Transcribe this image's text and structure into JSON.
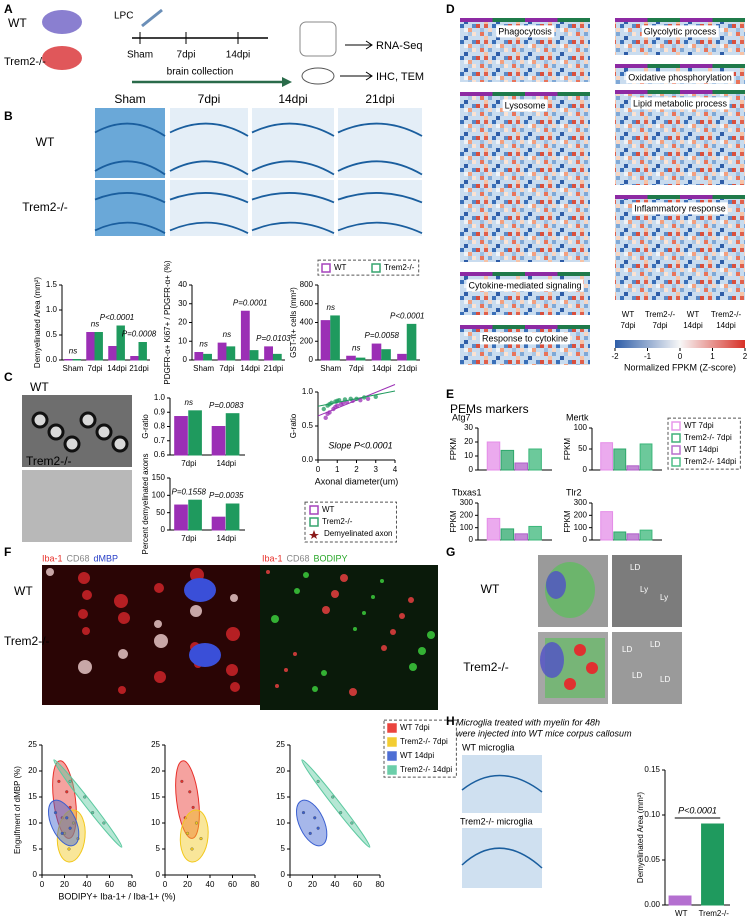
{
  "panels": {
    "A": "A",
    "B": "B",
    "C": "C",
    "D": "D",
    "E": "E",
    "F": "F",
    "G": "G",
    "H": "H"
  },
  "a": {
    "wt": "WT",
    "ko": "Trem2-/-",
    "lpc": "LPC",
    "times": [
      "Sham",
      "7dpi",
      "14dpi"
    ],
    "collection": "brain collection",
    "rnaseq": "RNA-Seq",
    "ihc": "IHC, TEM"
  },
  "b": {
    "columns": [
      "Sham",
      "7dpi",
      "14dpi",
      "21dpi"
    ],
    "rows": [
      "WT",
      "Trem2-/-"
    ]
  },
  "c": {
    "rows": [
      "WT",
      "Trem2-/-"
    ]
  },
  "d": {
    "left": [
      "Phagocytosis",
      "Lysosome",
      "Cytokine-mediated signaling",
      "Response to cytokine"
    ],
    "right": [
      "Glycolytic process",
      "Oxidative phosphorylation",
      "Lipid metabolic process",
      "Inflammatory response"
    ],
    "columns": [
      [
        "WT",
        "7dpi"
      ],
      [
        "Trem2-/-",
        "7dpi"
      ],
      [
        "WT",
        "14dpi"
      ],
      [
        "Trem2-/-",
        "14dpi"
      ]
    ],
    "colorbar": {
      "ticks": [
        -2,
        -1,
        0,
        1,
        2
      ],
      "label": "Normalized FPKM (Z-score)"
    }
  },
  "e": {
    "title": "PEMs markers"
  },
  "f": {
    "stains_left": [
      "Iba-1",
      "CD68",
      "dMBP"
    ],
    "stains_right": [
      "Iba-1",
      "CD68",
      "BODIPY"
    ],
    "rows": [
      "WT",
      "Trem2-/-"
    ]
  },
  "g": {
    "rows": [
      "WT",
      "Trem2-/-"
    ],
    "labels": [
      "LD",
      "Ly",
      "Ly",
      "LD",
      "LD",
      "LD",
      "LD"
    ]
  },
  "h": {
    "caption": [
      "Microglia treated with myelin for 48h",
      "were injected into WT mice corpus callosum"
    ],
    "images": [
      "WT microglia",
      "Trem2-/- microglia"
    ]
  },
  "chart_data": [
    {
      "type": "bar",
      "ylabel": "Demyelinated Area (mm²)",
      "categories": [
        "Sham",
        "7dpi",
        "14dpi",
        "21dpi"
      ],
      "series": [
        {
          "color": "#9b2fb5",
          "values": [
            0.01,
            0.55,
            0.27,
            0.07
          ]
        },
        {
          "color": "#1f9a5e",
          "values": [
            0.01,
            0.55,
            0.68,
            0.35
          ]
        }
      ],
      "ylim": [
        0,
        1.5
      ],
      "yticks": [
        {
          "value": 0,
          "label": "0.0"
        },
        {
          "value": 0.5,
          "label": "0.5"
        },
        {
          "value": 1,
          "label": "1.0"
        },
        {
          "value": 1.5,
          "label": "1.5"
        }
      ],
      "annotations": [
        "ns",
        "ns",
        "P<0.0001",
        "P=0.0008"
      ]
    },
    {
      "type": "bar",
      "ylabel": "PDGFR-α+ Ki67+ / PDGFR-α+ (%)",
      "categories": [
        "Sham",
        "7dpi",
        "14dpi",
        "21dpi"
      ],
      "series": [
        {
          "color": "#9b2fb5",
          "values": [
            4,
            9,
            26,
            7
          ]
        },
        {
          "color": "#1f9a5e",
          "values": [
            3,
            7,
            5,
            3
          ]
        }
      ],
      "ylim": [
        0,
        40
      ],
      "yticks": [
        0,
        10,
        20,
        30,
        40
      ],
      "annotations": [
        "ns",
        "ns",
        "P=0.0001",
        "P=0.0103"
      ]
    },
    {
      "type": "bar",
      "ylabel": "GST-π+ cells (mm²)",
      "categories": [
        "Sham",
        "7dpi",
        "14dpi",
        "21dpi"
      ],
      "series": [
        {
          "name": "WT",
          "color": "#9b2fb5",
          "values": [
            420,
            40,
            170,
            60
          ]
        },
        {
          "name": "Trem2-/-",
          "color": "#1f9a5e",
          "values": [
            470,
            20,
            110,
            380
          ]
        }
      ],
      "ylim": [
        0,
        800
      ],
      "yticks": [
        0,
        200,
        400,
        600,
        800
      ],
      "annotations": [
        "ns",
        "ns",
        "P=0.0058",
        "P<0.0001"
      ]
    },
    {
      "type": "bar",
      "ylabel": "G-ratio",
      "categories": [
        "7dpi",
        "14dpi"
      ],
      "series": [
        {
          "color": "#9b2fb5",
          "values": [
            0.87,
            0.8
          ]
        },
        {
          "color": "#1f9a5e",
          "values": [
            0.91,
            0.89
          ]
        }
      ],
      "ylim": [
        0.6,
        1.0
      ],
      "yticks": [
        0.6,
        0.7,
        0.8,
        0.9,
        {
          "value": 1,
          "label": "1.0"
        }
      ],
      "annotations": [
        "ns",
        "P=0.0083"
      ]
    },
    {
      "type": "bar",
      "ylabel": "Percent demyelinated axons",
      "categories": [
        "7dpi",
        "14dpi"
      ],
      "series": [
        {
          "color": "#9b2fb5",
          "values": [
            72,
            37
          ]
        },
        {
          "color": "#1f9a5e",
          "values": [
            86,
            75
          ]
        }
      ],
      "ylim": [
        0,
        150
      ],
      "yticks": [
        0,
        50,
        100,
        150
      ],
      "annotations": [
        "P=0.1558",
        "P=0.0035"
      ]
    },
    {
      "type": "scatter",
      "xlabel": "Axonal diameter(um)",
      "ylabel": "G-ratio",
      "annotation": "Slope P<0.0001",
      "extra_legend": "Demyelinated axon",
      "xlim": [
        0,
        4
      ],
      "xticks": [
        0,
        1,
        2,
        3,
        4
      ],
      "ylim": [
        0,
        1
      ],
      "yticks": [
        {
          "value": 0,
          "label": "0.0"
        },
        0.5,
        {
          "value": 1,
          "label": "1.0"
        }
      ],
      "series": [
        {
          "name": "WT",
          "color": "#9b2fb5",
          "x": [
            0.4,
            0.6,
            0.8,
            1.0,
            1.2,
            1.5,
            1.8,
            2.2,
            2.6,
            0.5,
            0.9,
            1.3
          ],
          "values": [
            0.62,
            0.7,
            0.75,
            0.8,
            0.82,
            0.85,
            0.87,
            0.88,
            0.9,
            0.68,
            0.78,
            0.84
          ]
        },
        {
          "name": "Trem2-/-",
          "color": "#1f9a5e",
          "x": [
            0.3,
            0.5,
            0.7,
            0.9,
            1.1,
            1.4,
            1.7,
            2.0,
            2.4,
            3.0,
            0.6,
            1.0
          ],
          "values": [
            0.75,
            0.8,
            0.84,
            0.86,
            0.88,
            0.89,
            0.9,
            0.9,
            0.92,
            0.93,
            0.82,
            0.87
          ]
        }
      ]
    },
    {
      "type": "bar",
      "title": "Atg7",
      "ylabel": "FPKM",
      "ylim": [
        0,
        30
      ],
      "yticks": [
        0,
        10,
        20,
        30
      ],
      "series": [
        {
          "name": "WT 7dpi",
          "color": "#e48de8",
          "values": [
            20
          ]
        },
        {
          "name": "Trem2-/- 7dpi",
          "color": "#2ea86c",
          "values": [
            14
          ]
        },
        {
          "name": "WT 14dpi",
          "color": "#b061c9",
          "values": [
            5
          ]
        },
        {
          "name": "Trem2-/- 14dpi",
          "color": "#3bb77a",
          "values": [
            15
          ]
        }
      ]
    },
    {
      "type": "bar",
      "title": "Mertk",
      "ylabel": "FPKM",
      "ylim": [
        0,
        100
      ],
      "yticks": [
        0,
        50,
        100
      ],
      "series": [
        {
          "color": "#e48de8",
          "values": [
            65
          ]
        },
        {
          "color": "#2ea86c",
          "values": [
            50
          ]
        },
        {
          "color": "#b061c9",
          "values": [
            10
          ]
        },
        {
          "color": "#3bb77a",
          "values": [
            62
          ]
        }
      ]
    },
    {
      "type": "bar",
      "title": "Tbxas1",
      "ylabel": "FPKM",
      "ylim": [
        0,
        300
      ],
      "yticks": [
        0,
        100,
        200,
        300
      ],
      "series": [
        {
          "color": "#e48de8",
          "values": [
            175
          ]
        },
        {
          "color": "#2ea86c",
          "values": [
            90
          ]
        },
        {
          "color": "#b061c9",
          "values": [
            50
          ]
        },
        {
          "color": "#3bb77a",
          "values": [
            110
          ]
        }
      ]
    },
    {
      "type": "bar",
      "title": "Tlr2",
      "ylabel": "FPKM",
      "ylim": [
        0,
        300
      ],
      "yticks": [
        0,
        100,
        200,
        300
      ],
      "series": [
        {
          "color": "#e48de8",
          "values": [
            230
          ]
        },
        {
          "color": "#2ea86c",
          "values": [
            65
          ]
        },
        {
          "color": "#b061c9",
          "values": [
            50
          ]
        },
        {
          "color": "#3bb77a",
          "values": [
            80
          ]
        }
      ]
    },
    {
      "type": "ellipse",
      "xlabel": "BODIPY+ Iba-1+ / Iba-1+ (%)",
      "ylabel": "Engulfment of dMBP (%)",
      "xlim": [
        0,
        80
      ],
      "xticks": [
        0,
        20,
        40,
        60,
        80
      ],
      "ylim": [
        0,
        25
      ],
      "yticks": [
        0,
        5,
        10,
        15,
        20,
        25
      ],
      "series": [
        {
          "name": "WT 7dpi",
          "color": "#e8302a",
          "x": [
            15,
            22,
            18,
            25
          ],
          "values": [
            18,
            16,
            11,
            13
          ]
        },
        {
          "name": "Trem2-/- 7dpi",
          "color": "#f2c81c",
          "x": [
            20,
            28,
            24,
            32
          ],
          "values": [
            8,
            10,
            5,
            7
          ]
        },
        {
          "name": "WT 14dpi",
          "color": "#3a5fd0",
          "x": [
            12,
            25,
            18,
            22
          ],
          "values": [
            12,
            9,
            8,
            11
          ]
        },
        {
          "name": "Trem2-/- 14dpi",
          "color": "#5cc9a0",
          "x": [
            25,
            45,
            55,
            38
          ],
          "values": [
            18,
            12,
            10,
            15
          ]
        }
      ]
    },
    {
      "type": "ellipse",
      "xlim": [
        0,
        80
      ],
      "xticks": [
        0,
        20,
        40,
        60,
        80
      ],
      "ylim": [
        0,
        25
      ],
      "yticks": [
        0,
        5,
        10,
        15,
        20,
        25
      ],
      "series": [
        {
          "color": "#e8302a",
          "x": [
            15,
            22,
            18,
            25
          ],
          "values": [
            18,
            16,
            11,
            13
          ]
        },
        {
          "color": "#f2c81c",
          "x": [
            20,
            28,
            24,
            32
          ],
          "values": [
            8,
            10,
            5,
            7
          ]
        }
      ]
    },
    {
      "type": "ellipse",
      "xlim": [
        0,
        80
      ],
      "xticks": [
        0,
        20,
        40,
        60,
        80
      ],
      "ylim": [
        0,
        25
      ],
      "yticks": [
        0,
        5,
        10,
        15,
        20,
        25
      ],
      "series": [
        {
          "color": "#3a5fd0",
          "x": [
            12,
            25,
            18,
            22
          ],
          "values": [
            12,
            9,
            8,
            11
          ]
        },
        {
          "color": "#5cc9a0",
          "x": [
            25,
            45,
            55,
            38
          ],
          "values": [
            18,
            12,
            10,
            15
          ]
        }
      ]
    },
    {
      "type": "bar",
      "ylabel": "Demyelinated Area (mm²)",
      "categories": [
        "WT",
        "Trem2-/-"
      ],
      "values": [
        0.01,
        0.09
      ],
      "colors": [
        "#b46fd0",
        "#1f9a5e"
      ],
      "ylim": [
        0,
        0.15
      ],
      "yticks": [
        {
          "value": 0,
          "label": "0.00"
        },
        {
          "value": 0.05,
          "label": "0.05"
        },
        {
          "value": 0.1,
          "label": "0.10"
        },
        {
          "value": 0.15,
          "label": "0.15"
        }
      ],
      "annotations": [
        "P<0.0001"
      ]
    }
  ]
}
